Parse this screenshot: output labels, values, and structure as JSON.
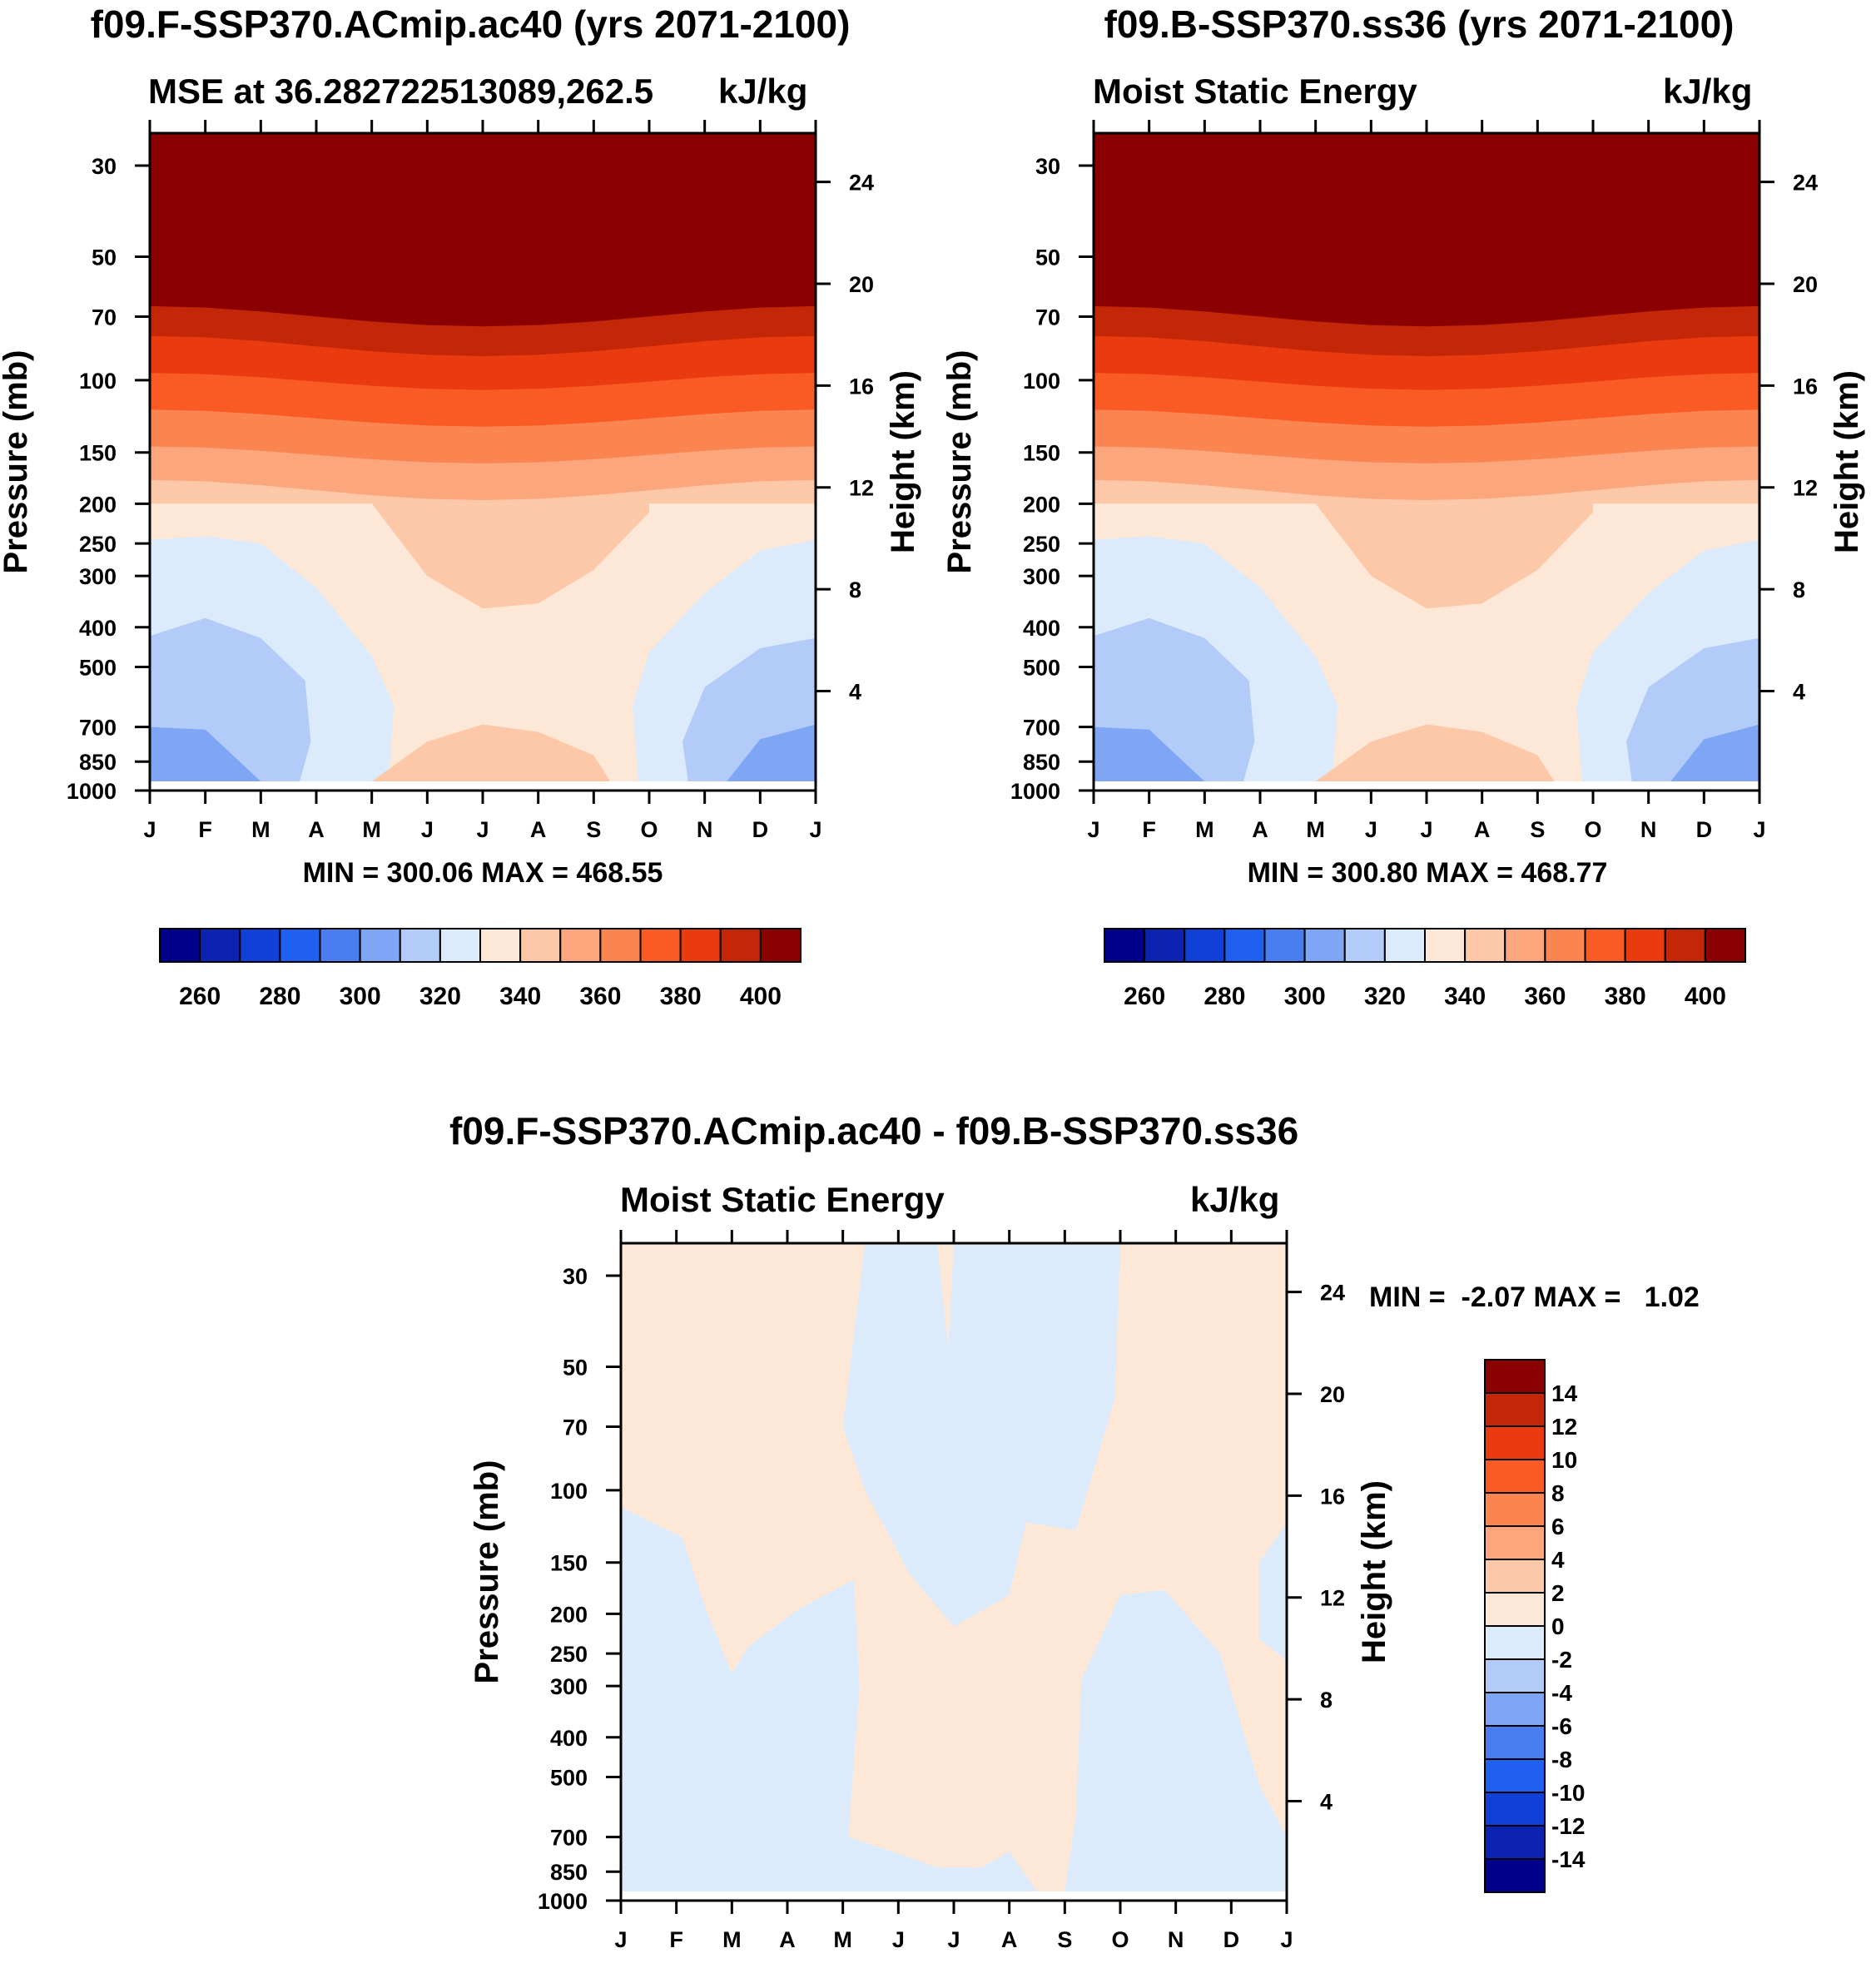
{
  "panels": [
    {
      "title": "f09.F-SSP370.ACmip.ac40 (yrs 2071-2100)",
      "left_label": "MSE at 36.282722513089,262.5",
      "right_label": "kJ/kg",
      "minmax": "MIN = 300.06 MAX = 468.55"
    },
    {
      "title": "f09.B-SSP370.ss36 (yrs 2071-2100)",
      "left_label": "Moist Static Energy",
      "right_label": "kJ/kg",
      "minmax": "MIN = 300.80 MAX = 468.77"
    },
    {
      "title": "f09.F-SSP370.ACmip.ac40 - f09.B-SSP370.ss36",
      "left_label": "Moist Static Energy",
      "right_label": "kJ/kg",
      "minmax": "MIN =  -2.07 MAX =   1.02"
    }
  ],
  "chart_data": [
    {
      "type": "contour",
      "title": "f09.F-SSP370.ACmip.ac40 (yrs 2071-2100)",
      "subtitle": "MSE at 36.282722513089,262.5",
      "units": "kJ/kg",
      "xlabel": "",
      "ylabel": "Pressure (mb)",
      "y2label": "Height (km)",
      "x_ticks": [
        "J",
        "F",
        "M",
        "A",
        "M",
        "J",
        "J",
        "A",
        "S",
        "O",
        "N",
        "D",
        "J"
      ],
      "pressure_ticks": [
        30,
        50,
        70,
        100,
        150,
        200,
        250,
        300,
        400,
        500,
        700,
        850,
        1000
      ],
      "height_ticks": [
        24,
        20,
        16,
        12,
        8,
        4
      ],
      "ylim": [
        1000,
        25
      ],
      "min": 300.06,
      "max": 468.55,
      "colorbar": {
        "levels": [
          250,
          260,
          270,
          280,
          290,
          300,
          310,
          320,
          330,
          340,
          350,
          360,
          370,
          380,
          390,
          400,
          410
        ],
        "labels": [
          "260",
          "280",
          "300",
          "320",
          "340",
          "360",
          "380",
          "400"
        ],
        "colors": [
          "#00008b",
          "#0b23b0",
          "#1040d8",
          "#2060f0",
          "#4a7ef0",
          "#7fa6f4",
          "#b3cbf8",
          "#dcebfb",
          "#fde8d8",
          "#fcc8a8",
          "#fba67d",
          "#fb8550",
          "#fa5a24",
          "#ea3a10",
          "#c42608",
          "#8b0000"
        ]
      }
    },
    {
      "type": "contour",
      "title": "f09.B-SSP370.ss36 (yrs 2071-2100)",
      "subtitle": "Moist Static Energy",
      "units": "kJ/kg",
      "xlabel": "",
      "ylabel": "Pressure (mb)",
      "y2label": "Height (km)",
      "x_ticks": [
        "J",
        "F",
        "M",
        "A",
        "M",
        "J",
        "J",
        "A",
        "S",
        "O",
        "N",
        "D",
        "J"
      ],
      "pressure_ticks": [
        30,
        50,
        70,
        100,
        150,
        200,
        250,
        300,
        400,
        500,
        700,
        850,
        1000
      ],
      "height_ticks": [
        24,
        20,
        16,
        12,
        8,
        4
      ],
      "ylim": [
        1000,
        25
      ],
      "min": 300.8,
      "max": 468.77,
      "colorbar": {
        "levels": [
          250,
          260,
          270,
          280,
          290,
          300,
          310,
          320,
          330,
          340,
          350,
          360,
          370,
          380,
          390,
          400,
          410
        ],
        "labels": [
          "260",
          "280",
          "300",
          "320",
          "340",
          "360",
          "380",
          "400"
        ],
        "colors": [
          "#00008b",
          "#0b23b0",
          "#1040d8",
          "#2060f0",
          "#4a7ef0",
          "#7fa6f4",
          "#b3cbf8",
          "#dcebfb",
          "#fde8d8",
          "#fcc8a8",
          "#fba67d",
          "#fb8550",
          "#fa5a24",
          "#ea3a10",
          "#c42608",
          "#8b0000"
        ]
      }
    },
    {
      "type": "contour",
      "title": "f09.F-SSP370.ACmip.ac40 - f09.B-SSP370.ss36",
      "subtitle": "Moist Static Energy",
      "units": "kJ/kg",
      "xlabel": "",
      "ylabel": "Pressure (mb)",
      "y2label": "Height (km)",
      "x_ticks": [
        "J",
        "F",
        "M",
        "A",
        "M",
        "J",
        "J",
        "A",
        "S",
        "O",
        "N",
        "D",
        "J"
      ],
      "pressure_ticks": [
        30,
        50,
        70,
        100,
        150,
        200,
        250,
        300,
        400,
        500,
        700,
        850,
        1000
      ],
      "height_ticks": [
        24,
        20,
        16,
        12,
        8,
        4
      ],
      "ylim": [
        1000,
        25
      ],
      "min": -2.07,
      "max": 1.02,
      "colorbar": {
        "orientation": "vertical",
        "labels": [
          "14",
          "12",
          "10",
          "8",
          "6",
          "4",
          "2",
          "0",
          "-2",
          "-4",
          "-6",
          "-8",
          "-10",
          "-12",
          "-14"
        ],
        "colors_top_to_bottom": [
          "#8b0000",
          "#c42608",
          "#ea3a10",
          "#fa5a24",
          "#fb8550",
          "#fba67d",
          "#fcc8a8",
          "#fde8d8",
          "#dcebfb",
          "#b3cbf8",
          "#7fa6f4",
          "#4a7ef0",
          "#2060f0",
          "#1040d8",
          "#0b23b0",
          "#00008b"
        ]
      }
    }
  ]
}
